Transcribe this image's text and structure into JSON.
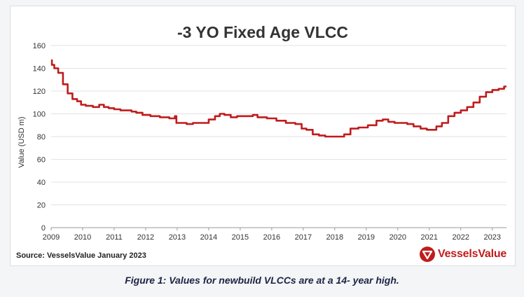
{
  "chart_data": {
    "type": "line",
    "title": "-3 YO Fixed Age VLCC",
    "xlabel": "",
    "ylabel": "Value (USD m)",
    "ylim": [
      0,
      160
    ],
    "xlim": [
      2009,
      2023.45
    ],
    "yticks": [
      0,
      20,
      40,
      60,
      80,
      100,
      120,
      140,
      160
    ],
    "xticks": [
      "2009",
      "2010",
      "2011",
      "2012",
      "2013",
      "2014",
      "2015",
      "2016",
      "2017",
      "2018",
      "2019",
      "2020",
      "2021",
      "2022",
      "2023"
    ],
    "grid": "horizontal",
    "series": [
      {
        "name": "-3 YO Fixed Age VLCC",
        "color": "#c01c1c",
        "x": [
          2009.0,
          2009.05,
          2009.15,
          2009.3,
          2009.45,
          2009.6,
          2009.75,
          2009.9,
          2010.0,
          2010.2,
          2010.45,
          2010.6,
          2010.75,
          2010.9,
          2011.1,
          2011.3,
          2011.5,
          2011.6,
          2011.8,
          2012.0,
          2012.3,
          2012.6,
          2012.9,
          2012.95,
          2013.0,
          2013.2,
          2013.4,
          2013.6,
          2013.9,
          2014.1,
          2014.3,
          2014.4,
          2014.6,
          2014.8,
          2015.0,
          2015.3,
          2015.5,
          2015.6,
          2015.7,
          2016.0,
          2016.3,
          2016.6,
          2016.9,
          2017.0,
          2017.2,
          2017.4,
          2017.6,
          2017.8,
          2018.0,
          2018.2,
          2018.4,
          2018.6,
          2018.9,
          2019.2,
          2019.45,
          2019.6,
          2019.8,
          2020.0,
          2020.2,
          2020.4,
          2020.6,
          2020.85,
          2021.0,
          2021.15,
          2021.3,
          2021.5,
          2021.7,
          2021.9,
          2022.1,
          2022.3,
          2022.5,
          2022.7,
          2022.9,
          2023.1,
          2023.3,
          2023.45
        ],
        "values": [
          147,
          143,
          140,
          136,
          126,
          118,
          113,
          111,
          108,
          107,
          106,
          108,
          106,
          105,
          104,
          103,
          103,
          102,
          101,
          99,
          98,
          97,
          96,
          98,
          92,
          92,
          91,
          92,
          92,
          95,
          98,
          100,
          99,
          97,
          98,
          98,
          99,
          97,
          97,
          96,
          94,
          92,
          91,
          87,
          86,
          82,
          81,
          80,
          80,
          80,
          82,
          87,
          88,
          90,
          94,
          95,
          93,
          92,
          92,
          91,
          89,
          87,
          86,
          86,
          89,
          92,
          98,
          101,
          103,
          106,
          110,
          115,
          119,
          121,
          122,
          124
        ]
      }
    ]
  },
  "source": "Source: VesselsValue January 2023",
  "brand": {
    "name": "VesselsValue"
  },
  "caption": "Figure 1: Values for newbuild VLCCs are at a 14- year high."
}
